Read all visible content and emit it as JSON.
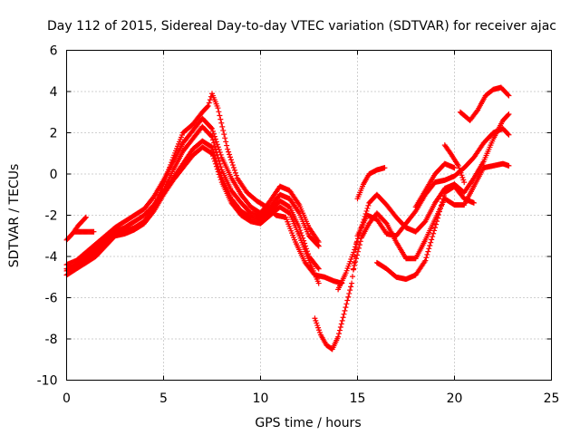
{
  "chart_data": {
    "type": "scatter",
    "title": "Day 112 of 2015, Sidereal Day-to-day VTEC variation (SDTVAR) for receiver ajac",
    "xlabel": "GPS time / hours",
    "ylabel": "SDTVAR / TECUs",
    "xlim": [
      0,
      25
    ],
    "ylim": [
      -10,
      6
    ],
    "xticks": [
      0,
      5,
      10,
      15,
      20,
      25
    ],
    "yticks": [
      -10,
      -8,
      -6,
      -4,
      -2,
      0,
      2,
      4,
      6
    ],
    "grid": true,
    "marker": "+",
    "color": "#ff0000",
    "series": [
      {
        "x": [
          0.0,
          0.3,
          0.6,
          1.0
        ],
        "y": [
          -3.2,
          -2.9,
          -2.5,
          -2.1
        ]
      },
      {
        "x": [
          0.4,
          0.7,
          1.0,
          1.4
        ],
        "y": [
          -2.8,
          -2.8,
          -2.8,
          -2.8
        ]
      },
      {
        "x": [
          0.0,
          0.5,
          1.0,
          1.5,
          2.0,
          2.5,
          3.0,
          3.5,
          4.0,
          4.5,
          5.0,
          5.5,
          6.0,
          6.5,
          7.0,
          7.5,
          8.0,
          8.5,
          9.0,
          9.5,
          10.0,
          10.5,
          11.0,
          11.5,
          12.0,
          12.5,
          13.0
        ],
        "y": [
          -4.7,
          -4.4,
          -4.0,
          -3.6,
          -3.2,
          -2.8,
          -2.6,
          -2.3,
          -2.0,
          -1.5,
          -0.8,
          0.2,
          1.1,
          1.7,
          2.3,
          1.8,
          0.2,
          -0.8,
          -1.4,
          -1.9,
          -2.0,
          -1.6,
          -1.0,
          -1.2,
          -1.9,
          -3.0,
          -3.5
        ]
      },
      {
        "x": [
          0.0,
          0.5,
          1.0,
          1.5,
          2.0,
          2.5,
          3.0,
          3.5,
          4.0,
          4.5,
          5.0,
          5.5,
          6.0,
          6.5,
          7.0,
          7.5,
          8.0,
          8.5,
          9.0,
          9.5,
          10.0,
          10.5,
          11.0,
          11.5,
          12.0,
          12.5,
          13.0
        ],
        "y": [
          -4.9,
          -4.6,
          -4.3,
          -4.0,
          -3.5,
          -3.0,
          -2.8,
          -2.6,
          -2.3,
          -1.7,
          -0.9,
          -0.2,
          0.5,
          1.2,
          1.6,
          1.3,
          -0.2,
          -1.2,
          -1.8,
          -2.1,
          -2.2,
          -1.8,
          -1.3,
          -1.6,
          -2.6,
          -4.0,
          -4.6
        ]
      },
      {
        "x": [
          0.0,
          0.5,
          1.0,
          1.5,
          2.0,
          2.5,
          3.0,
          3.5,
          4.0,
          4.5,
          5.0,
          5.5,
          6.0,
          6.5,
          7.0,
          7.5,
          8.0,
          8.5,
          9.0,
          9.5,
          10.0,
          10.5,
          11.0,
          11.5,
          12.0,
          12.5,
          13.0
        ],
        "y": [
          -4.4,
          -4.2,
          -3.8,
          -3.4,
          -3.0,
          -2.6,
          -2.3,
          -2.0,
          -1.7,
          -1.1,
          -0.3,
          0.6,
          1.5,
          2.1,
          2.7,
          2.2,
          0.8,
          -0.2,
          -1.0,
          -1.6,
          -1.9,
          -1.3,
          -0.6,
          -0.8,
          -1.5,
          -2.6,
          -3.3
        ]
      },
      {
        "x": [
          0.0,
          0.5,
          1.0,
          1.5,
          2.0,
          2.5,
          3.0,
          3.5,
          4.0,
          4.5,
          5.0,
          5.5,
          6.0,
          6.5,
          7.0,
          7.5,
          8.0,
          8.5,
          9.0,
          9.5,
          10.0,
          10.5,
          11.0,
          11.5,
          12.0,
          12.5,
          13.0
        ],
        "y": [
          -4.6,
          -4.5,
          -4.1,
          -3.8,
          -3.4,
          -3.0,
          -2.9,
          -2.7,
          -2.4,
          -1.8,
          -1.0,
          -0.3,
          0.3,
          0.9,
          1.3,
          1.0,
          -0.4,
          -1.4,
          -2.0,
          -2.3,
          -2.4,
          -2.0,
          -1.6,
          -1.9,
          -3.0,
          -4.2,
          -5.3
        ]
      },
      {
        "x": [
          4.5,
          5.0,
          5.5,
          6.0,
          6.5,
          7.0,
          7.3,
          7.5,
          7.8,
          8.3,
          8.8,
          9.3,
          9.8,
          10.3,
          10.8,
          11.3,
          11.8,
          12.3,
          12.8,
          13.3,
          13.8,
          14.2
        ],
        "y": [
          -1.6,
          -0.5,
          0.8,
          2.0,
          2.4,
          3.0,
          3.3,
          3.9,
          3.2,
          1.2,
          -0.2,
          -0.9,
          -1.3,
          -1.6,
          -2.0,
          -2.1,
          -3.3,
          -4.3,
          -4.9,
          -5.0,
          -5.2,
          -5.3
        ]
      },
      {
        "x": [
          12.8,
          13.1,
          13.4,
          13.7,
          14.0,
          14.3,
          14.7,
          15.0,
          15.5,
          16.0,
          16.5,
          17.0,
          17.5,
          18.0,
          18.5,
          19.0,
          19.5,
          20.0,
          20.5,
          21.0,
          21.5,
          22.0,
          22.5,
          22.8
        ],
        "y": [
          -7.0,
          -7.8,
          -8.3,
          -8.5,
          -7.9,
          -6.8,
          -5.3,
          -3.0,
          -2.0,
          -2.2,
          -2.9,
          -3.0,
          -2.4,
          -1.8,
          -1.0,
          -0.4,
          -0.3,
          -0.1,
          0.3,
          0.8,
          1.5,
          2.0,
          2.2,
          1.9
        ]
      },
      {
        "x": [
          14.0,
          14.4,
          14.8,
          15.2,
          15.6,
          16.0,
          16.5,
          17.0,
          17.5,
          18.0,
          18.5,
          19.0,
          19.5,
          20.0,
          20.5,
          21.0,
          21.5,
          22.0,
          22.5,
          22.8
        ],
        "y": [
          -5.6,
          -4.8,
          -3.8,
          -2.6,
          -1.4,
          -1.0,
          -1.5,
          -2.1,
          -2.6,
          -2.8,
          -2.3,
          -1.4,
          -0.7,
          -0.5,
          -0.9,
          -0.2,
          0.6,
          1.7,
          2.6,
          2.9
        ]
      },
      {
        "x": [
          15.0,
          15.3,
          15.6,
          16.0,
          16.4
        ],
        "y": [
          -1.2,
          -0.5,
          0.0,
          0.2,
          0.3
        ]
      },
      {
        "x": [
          14.8,
          15.2,
          15.6,
          16.0,
          16.5,
          17.0,
          17.5,
          18.0,
          18.5,
          19.0,
          19.5,
          20.0,
          20.5,
          21.0,
          21.5,
          22.0,
          22.5,
          22.8
        ],
        "y": [
          -4.6,
          -3.1,
          -2.4,
          -1.9,
          -2.4,
          -3.3,
          -4.1,
          -4.1,
          -3.2,
          -2.2,
          -1.2,
          -1.5,
          -1.5,
          -0.6,
          0.3,
          0.4,
          0.5,
          0.4
        ]
      },
      {
        "x": [
          16.0,
          16.5,
          17.0,
          17.5,
          18.0,
          18.5,
          19.0,
          19.5,
          20.0,
          20.5,
          21.0
        ],
        "y": [
          -4.3,
          -4.6,
          -5.0,
          -5.1,
          -4.9,
          -4.2,
          -2.6,
          -0.9,
          -0.6,
          -1.2,
          -1.4
        ]
      },
      {
        "x": [
          18.0,
          18.5,
          19.0,
          19.5,
          20.0
        ],
        "y": [
          -1.6,
          -0.8,
          0.0,
          0.5,
          0.3
        ]
      },
      {
        "x": [
          19.5,
          19.8,
          20.2,
          20.5
        ],
        "y": [
          1.4,
          1.0,
          0.4,
          -0.4
        ]
      },
      {
        "x": [
          20.3,
          20.8,
          21.2,
          21.6,
          22.0,
          22.4,
          22.8
        ],
        "y": [
          3.0,
          2.6,
          3.1,
          3.8,
          4.1,
          4.2,
          3.8
        ]
      }
    ]
  }
}
